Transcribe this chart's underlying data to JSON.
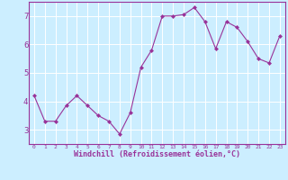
{
  "x": [
    0,
    1,
    2,
    3,
    4,
    5,
    6,
    7,
    8,
    9,
    10,
    11,
    12,
    13,
    14,
    15,
    16,
    17,
    18,
    19,
    20,
    21,
    22,
    23
  ],
  "y": [
    4.2,
    3.3,
    3.3,
    3.85,
    4.2,
    3.85,
    3.5,
    3.3,
    2.85,
    3.6,
    5.2,
    5.8,
    7.0,
    7.0,
    7.05,
    7.3,
    6.8,
    5.85,
    6.8,
    6.6,
    6.1,
    5.5,
    5.35,
    6.3
  ],
  "line_color": "#993399",
  "marker": "D",
  "marker_size": 2.0,
  "bg_color": "#cceeff",
  "grid_color": "#ffffff",
  "xlabel": "Windchill (Refroidissement éolien,°C)",
  "xlabel_color": "#993399",
  "tick_color": "#993399",
  "axis_color": "#993399",
  "ylim": [
    2.5,
    7.5
  ],
  "xlim": [
    -0.5,
    23.5
  ],
  "yticks": [
    3,
    4,
    5,
    6,
    7
  ],
  "xticks": [
    0,
    1,
    2,
    3,
    4,
    5,
    6,
    7,
    8,
    9,
    10,
    11,
    12,
    13,
    14,
    15,
    16,
    17,
    18,
    19,
    20,
    21,
    22,
    23
  ]
}
